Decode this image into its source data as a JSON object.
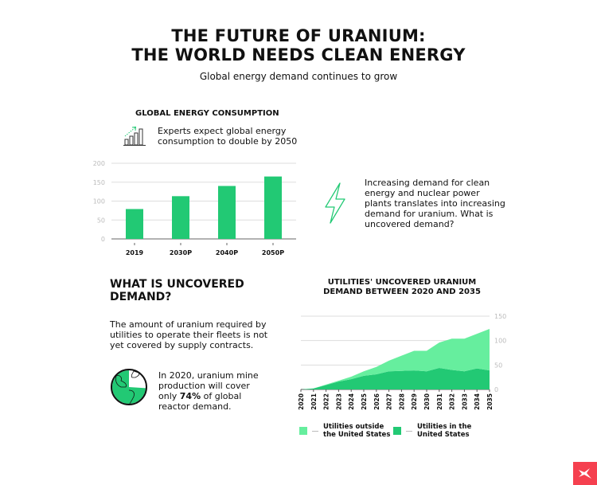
{
  "header": {
    "title_line1": "THE FUTURE OF URANIUM:",
    "title_line2": "THE WORLD NEEDS CLEAN ENERGY",
    "subtitle": "Global energy demand continues to grow"
  },
  "consumption": {
    "heading": "GLOBAL ENERGY CONSUMPTION",
    "note_line1": "Experts expect global energy",
    "note_line2": "consumption to double by 2050"
  },
  "demand_note": {
    "line1": "Increasing demand for clean",
    "line2": "energy and nuclear power",
    "line3": "plants translates into increasing",
    "line4": "demand for uranium. What is",
    "line5": "uncovered demand?"
  },
  "uncovered": {
    "heading_line1": "WHAT IS UNCOVERED",
    "heading_line2": "DEMAND?",
    "body_line1": "The amount of uranium required by",
    "body_line2": "utilities to operate their fleets is not",
    "body_line3": "yet covered by supply contracts.",
    "globe_line1": "In 2020, uranium mine",
    "globe_line2": "production will cover",
    "globe_line3_pre": "only ",
    "globe_line3_bold": "74%",
    "globe_line3_post": " of global",
    "globe_line4": "reactor demand.",
    "coverage_percent": 74
  },
  "colors": {
    "dark_green": "#22c974",
    "light_green": "#66ee9e",
    "brand_red": "#f5404f"
  },
  "icons": {
    "growth": "bar-chart-growth-icon",
    "lightning": "lightning-icon",
    "globe": "globe-icon",
    "brand": "xtb-logo-icon"
  },
  "chart_data": [
    {
      "type": "bar",
      "title": "GLOBAL ENERGY CONSUMPTION",
      "categories": [
        "2019",
        "2030P",
        "2040P",
        "2050P"
      ],
      "values": [
        79,
        113,
        140,
        165
      ],
      "ylim": [
        0,
        200
      ],
      "yticks": [
        "0",
        "50",
        "100",
        "150",
        "200"
      ],
      "grid": true,
      "color": "#22c974"
    },
    {
      "type": "area",
      "stacked": true,
      "title_line1": "UTILITIES' UNCOVERED URANIUM",
      "title_line2": "DEMAND BETWEEN 2020 AND 2035",
      "categories": [
        "2020",
        "2021",
        "2022",
        "2023",
        "2024",
        "2025",
        "2026",
        "2027",
        "2028",
        "2029",
        "2030",
        "2031",
        "2032",
        "2033",
        "2034",
        "2035"
      ],
      "series": [
        {
          "name": "Utilities in the United States",
          "name_line1": "Utilities in the",
          "name_line2": "United States",
          "color": "#22c974",
          "values": [
            0,
            2,
            9,
            16,
            21,
            28,
            31,
            37,
            38,
            39,
            37,
            44,
            40,
            37,
            43,
            39
          ]
        },
        {
          "name": "Utilities outside the United States",
          "name_line1": "Utilities outside",
          "name_line2": "the United States",
          "color": "#66ee9e",
          "values": [
            0,
            0,
            1,
            2,
            5,
            9,
            15,
            22,
            31,
            40,
            42,
            52,
            64,
            67,
            71,
            85
          ]
        }
      ],
      "ylim": [
        0,
        150
      ],
      "yticks": [
        "0",
        "50",
        "100",
        "150"
      ],
      "grid": true,
      "legend": "bottom"
    }
  ]
}
